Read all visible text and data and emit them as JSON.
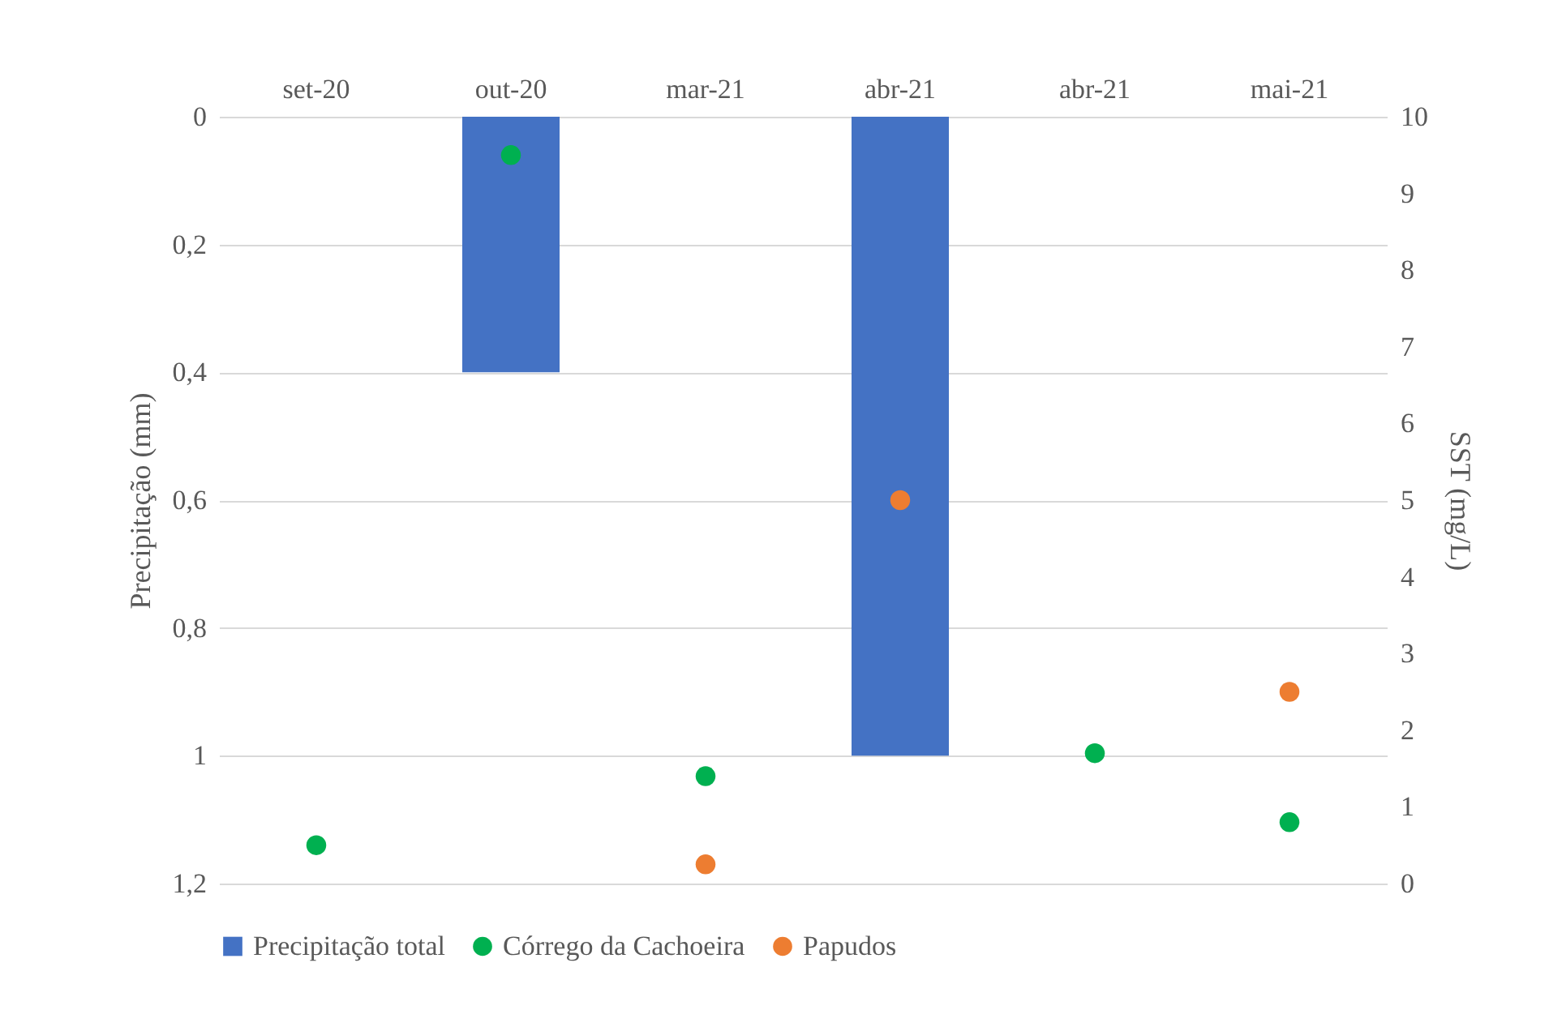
{
  "chart_data": {
    "type": "bar",
    "categories": [
      "set-20",
      "out-20",
      "mar-21",
      "abr-21",
      "abr-21",
      "mai-21"
    ],
    "ylabel": "Precipitação (mm)",
    "y2label": "SST (mg/L)",
    "series": [
      {
        "name": "Precipitação total",
        "color": "#4472c4",
        "values": [
          null,
          0.4,
          null,
          1.0,
          null,
          null
        ]
      },
      {
        "name": "Córrego da Cachoeira",
        "type": "scatter",
        "axis": "y2",
        "color": "#00b050",
        "values": [
          0.5,
          9.5,
          1.4,
          null,
          1.7,
          0.8
        ]
      },
      {
        "name": "Papudos",
        "type": "scatter",
        "axis": "y2",
        "color": "#ed7d31",
        "values": [
          null,
          null,
          0.25,
          5.0,
          null,
          2.5
        ]
      }
    ],
    "ylim": [
      1.2,
      0
    ],
    "yticks": [
      {
        "value": 0,
        "label": "0"
      },
      {
        "value": 0.2,
        "label": "0,2"
      },
      {
        "value": 0.4,
        "label": "0,4"
      },
      {
        "value": 0.6,
        "label": "0,6"
      },
      {
        "value": 0.8,
        "label": "0,8"
      },
      {
        "value": 1,
        "label": "1"
      },
      {
        "value": 1.2,
        "label": "1,2"
      }
    ],
    "y2lim": [
      0,
      10
    ],
    "y2ticks": [
      0,
      1,
      2,
      3,
      4,
      5,
      6,
      7,
      8,
      9,
      10
    ],
    "grid": "y",
    "legend": "bottom",
    "marker": "circle"
  }
}
